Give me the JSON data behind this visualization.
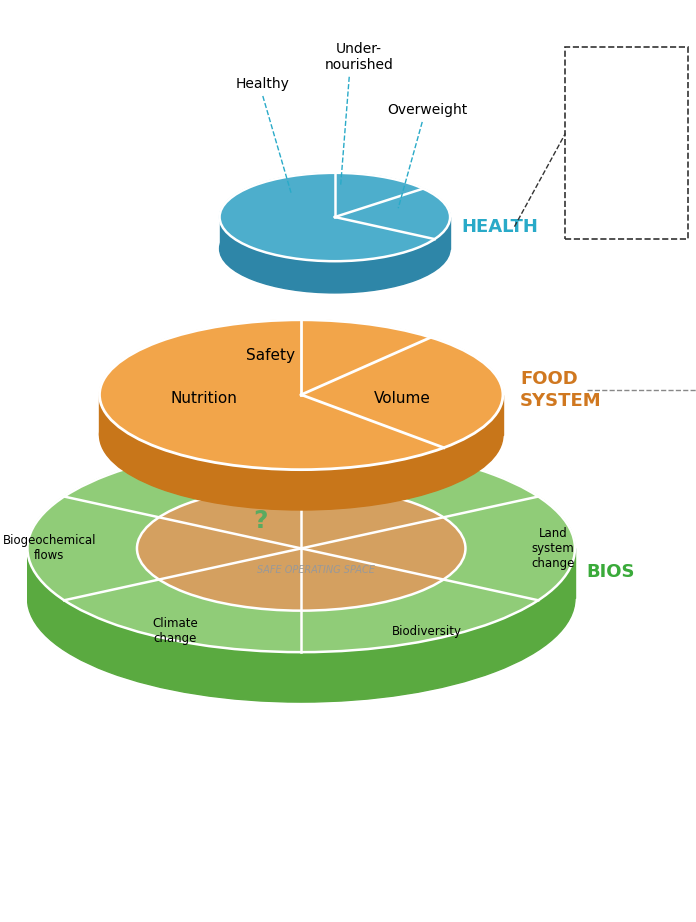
{
  "bg_color": "#ffffff",
  "health_color_top": "#4daecc",
  "health_color_side": "#2e86a8",
  "health_label_color": "#29aac8",
  "food_color_top": "#f2a54a",
  "food_color_side": "#c8761a",
  "food_label_color": "#d07820",
  "bio_color_top": "#90cc78",
  "bio_color_side": "#5aaa40",
  "bio_label_color": "#3aaa3a",
  "bio_inner_color": "#d4a060",
  "bio_inner_hatch": "#c89040",
  "bio_outer_ring_color": "#90cc78",
  "safe_space_label": "SAFE OPERATING SPACE",
  "health_label": "HEALTH",
  "food_label": "FOOD\nSYSTEM",
  "bio_label": "BIOS",
  "question_mark_color": "#5aaa60",
  "dashed_line_color": "#333333",
  "food_dashed_color": "#999999"
}
